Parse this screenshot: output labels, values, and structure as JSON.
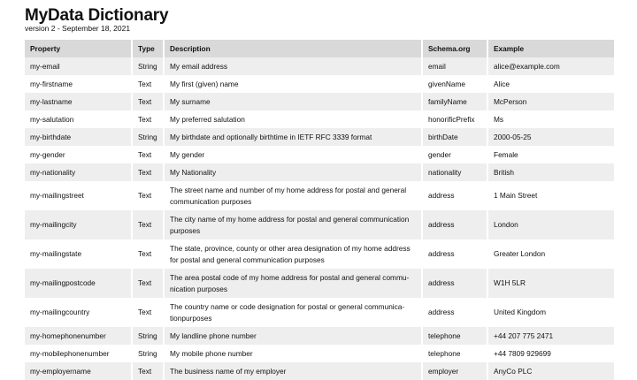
{
  "title": "MyData Dictionary",
  "subtitle": "version 2 - September 18, 2021",
  "columns": [
    "Property",
    "Type",
    "Description",
    "Schema.org",
    "Example"
  ],
  "rows": [
    [
      "my-email",
      "String",
      "My email address",
      "email",
      "alice@example.com"
    ],
    [
      "my-firstname",
      "Text",
      "My first (given) name",
      "givenName",
      "Alice"
    ],
    [
      "my-lastname",
      "Text",
      "My surname",
      "familyName",
      "McPerson"
    ],
    [
      "my-salutation",
      "Text",
      "My preferred salutation",
      "honorificPrefix",
      "Ms"
    ],
    [
      "my-birthdate",
      "String",
      "My birthdate and optionally birthtime in IETF RFC 3339 format",
      "birthDate",
      "2000-05-25"
    ],
    [
      "my-gender",
      "Text",
      "My gender",
      "gender",
      "Female"
    ],
    [
      "my-nationality",
      "Text",
      "My Nationality",
      "nationality",
      "British"
    ],
    [
      "my-mailingstreet",
      "Text",
      "The street name and number of my home address for postal and general communication purposes",
      "address",
      "1 Main Street"
    ],
    [
      "my-mailingcity",
      "Text",
      "The city name of my home address for postal and general communication purposes",
      "address",
      "London"
    ],
    [
      "my-mailingstate",
      "Text",
      "The state, province, county or other area designation of my home address for postal and general communication purposes",
      "address",
      "Greater London"
    ],
    [
      "my-mailingpostcode",
      "Text",
      "The area postal code of my home address for postal and general commu-nication purposes",
      "address",
      "W1H 5LR"
    ],
    [
      "my-mailingcountry",
      "Text",
      "The country name or code designation for postal or general communica-tionpurposes",
      "address",
      "United Kingdom"
    ],
    [
      "my-homephonenumber",
      "String",
      "My landline phone number",
      "telephone",
      "+44 207 775 2471"
    ],
    [
      "my-mobilephonenumber",
      "String",
      "My mobile phone number",
      "telephone",
      "+44 7809 929699"
    ],
    [
      "my-employername",
      "Text",
      "The business name of my employer",
      "employer",
      "AnyCo PLC"
    ]
  ]
}
